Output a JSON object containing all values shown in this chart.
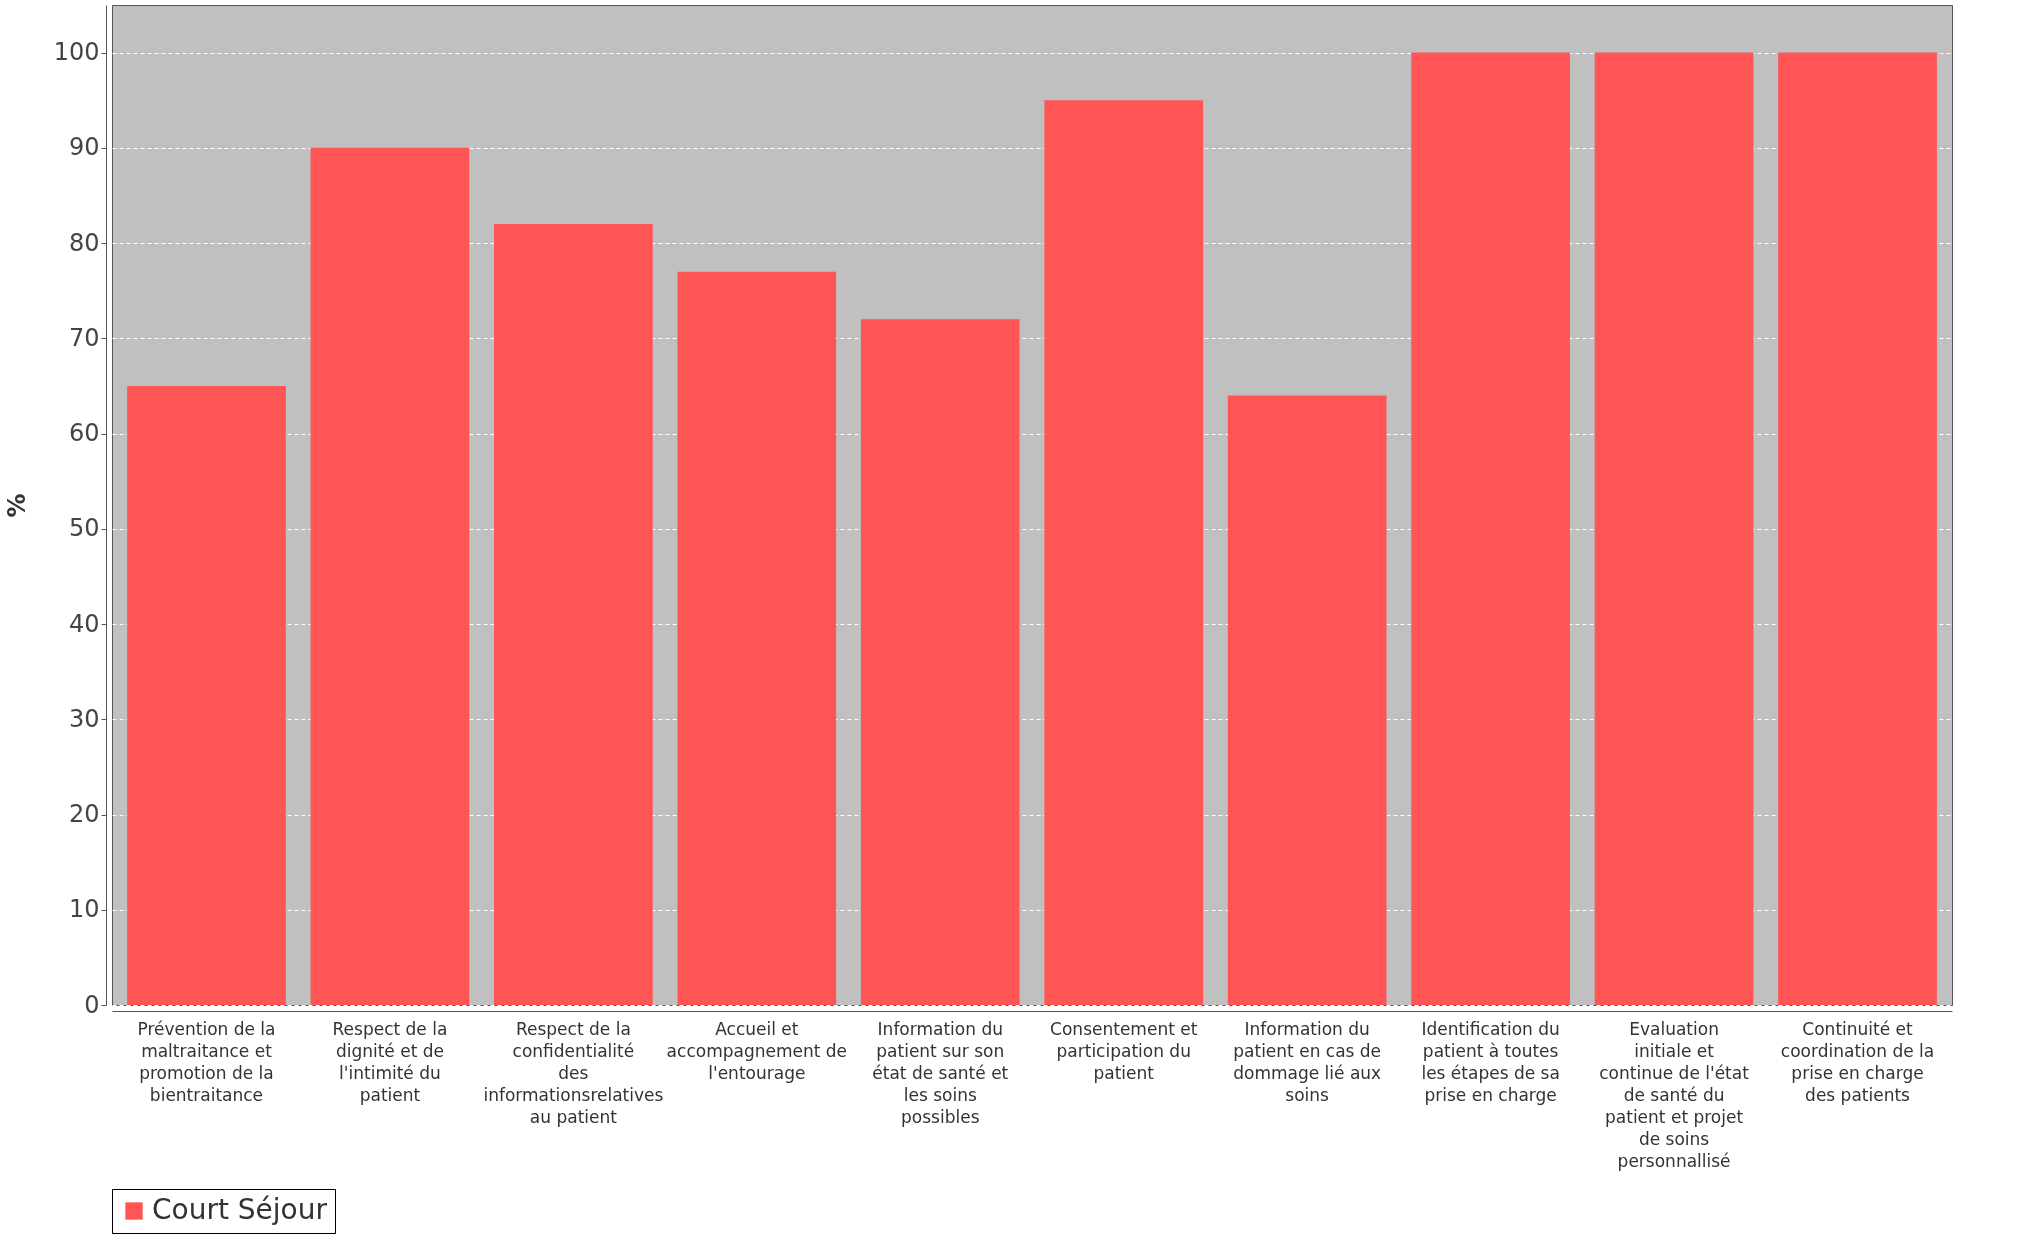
{
  "chart_data": {
    "type": "bar",
    "ylabel": "%",
    "categories": [
      "Prévention de la maltraitance et promotion de la bientraitance",
      "Respect de la dignité et de l'intimité du patient",
      "Respect de la confidentialité des informationsrelatives au patient",
      "Accueil et accompagnement de l'entourage",
      "Information du patient sur son état de santé et les soins possibles",
      "Consentement et participation du patient",
      "Information du patient en cas de dommage lié aux soins",
      "Identification du patient à toutes les étapes de sa prise en charge",
      "Evaluation initiale et continue de l'état de santé du patient et projet de soins personnallisé",
      "Continuité et coordination de la prise en charge des patients"
    ],
    "series": [
      {
        "name": "Court Séjour",
        "color": "#ff5555",
        "values": [
          65,
          90,
          82,
          77,
          72,
          95,
          64,
          100,
          100,
          100
        ]
      }
    ],
    "ylim": [
      0,
      105
    ],
    "yticks": [
      0,
      10,
      20,
      30,
      40,
      50,
      60,
      70,
      80,
      90,
      100
    ],
    "grid": "y",
    "legend": "bottom"
  }
}
